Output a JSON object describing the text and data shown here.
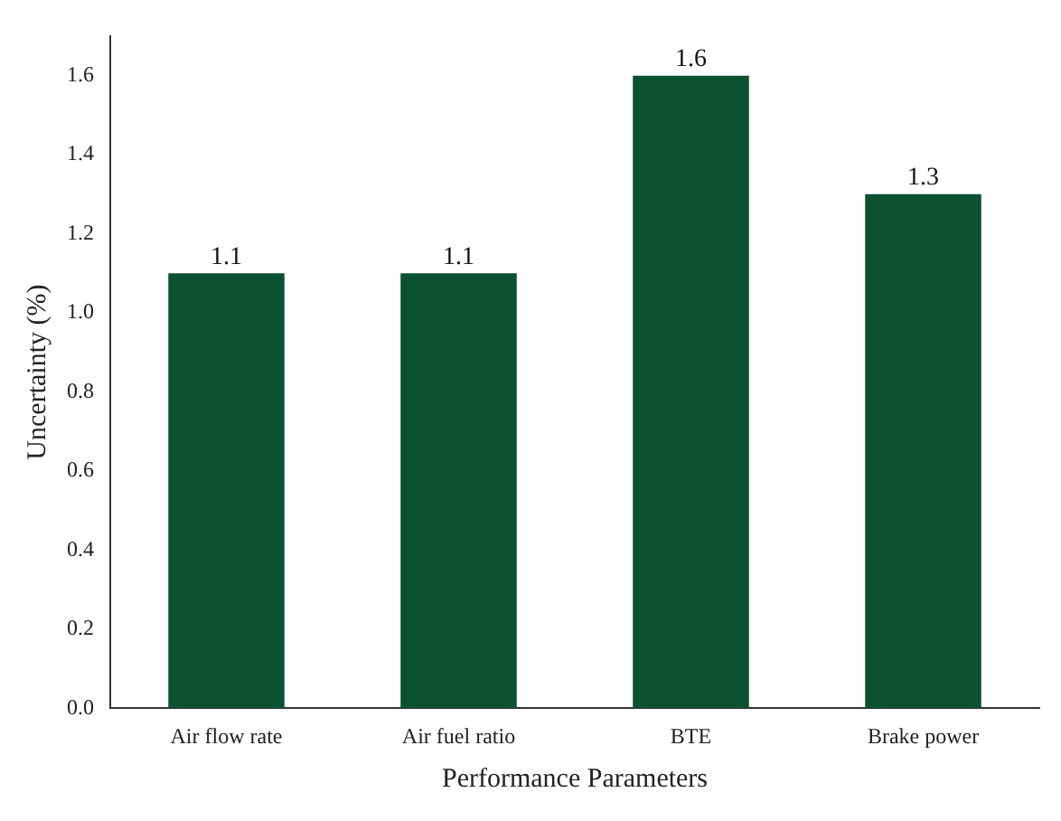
{
  "chart_data": {
    "type": "bar",
    "xlabel": "Performance Parameters",
    "ylabel": "Uncertainty (%)",
    "categories": [
      "Air flow rate",
      "Air fuel ratio",
      "BTE",
      "Brake power"
    ],
    "values": [
      1.1,
      1.1,
      1.6,
      1.3
    ],
    "color": "#0b5132",
    "ylim": [
      0,
      1.7
    ],
    "yticks": [
      {
        "value": 0,
        "label": "0.0"
      },
      0.2,
      0.4,
      0.6,
      0.8,
      {
        "value": 1,
        "label": "1.0"
      },
      1.2,
      1.4,
      1.6
    ],
    "data_labels": true,
    "grid": false,
    "legend": false
  }
}
